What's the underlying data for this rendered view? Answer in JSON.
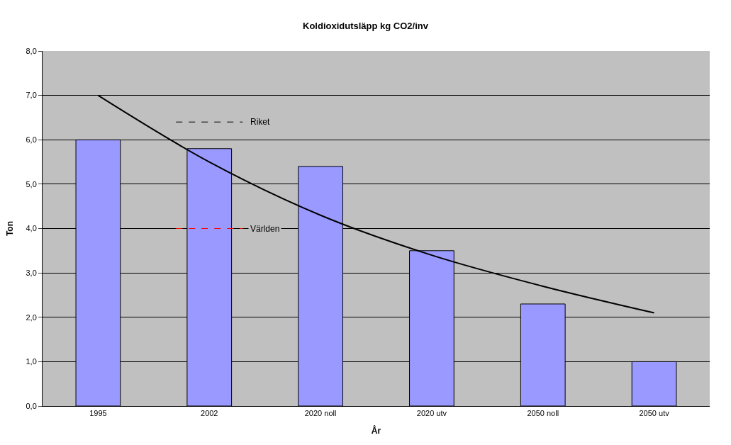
{
  "chart_data": {
    "type": "bar",
    "title": "Koldioxidutsläpp kg CO2/inv",
    "xlabel": "År",
    "ylabel": "Ton",
    "categories": [
      "1995",
      "2002",
      "2020 noll",
      "2020 utv",
      "2050 noll",
      "2050 utv"
    ],
    "series": [
      {
        "color": "#9999ff",
        "values": [
          6.0,
          5.8,
          5.4,
          3.5,
          2.3,
          1.0
        ]
      },
      {
        "type": "line",
        "color": "#000000",
        "values": [
          7.0,
          5.5,
          4.3,
          3.4,
          2.7,
          2.1
        ]
      }
    ],
    "ylim": [
      0,
      8
    ],
    "yticks": [
      {
        "value": 0,
        "label": "0,0"
      },
      {
        "value": 1,
        "label": "1,0"
      },
      {
        "value": 2,
        "label": "2,0"
      },
      {
        "value": 3,
        "label": "3,0"
      },
      {
        "value": 4,
        "label": "4,0"
      },
      {
        "value": 5,
        "label": "5,0"
      },
      {
        "value": 6,
        "label": "6,0"
      },
      {
        "value": 7,
        "label": "7,0"
      },
      {
        "value": 8,
        "label": "8,0"
      }
    ],
    "ref_lines": [
      {
        "axis": "y",
        "value": 6.4,
        "label": "Riket",
        "color": "#000000",
        "line_style": "dashed"
      },
      {
        "axis": "y",
        "value": 4.0,
        "label": "Världen",
        "color": "#ff0000",
        "line_style": "dashed"
      }
    ],
    "grid": "y"
  }
}
